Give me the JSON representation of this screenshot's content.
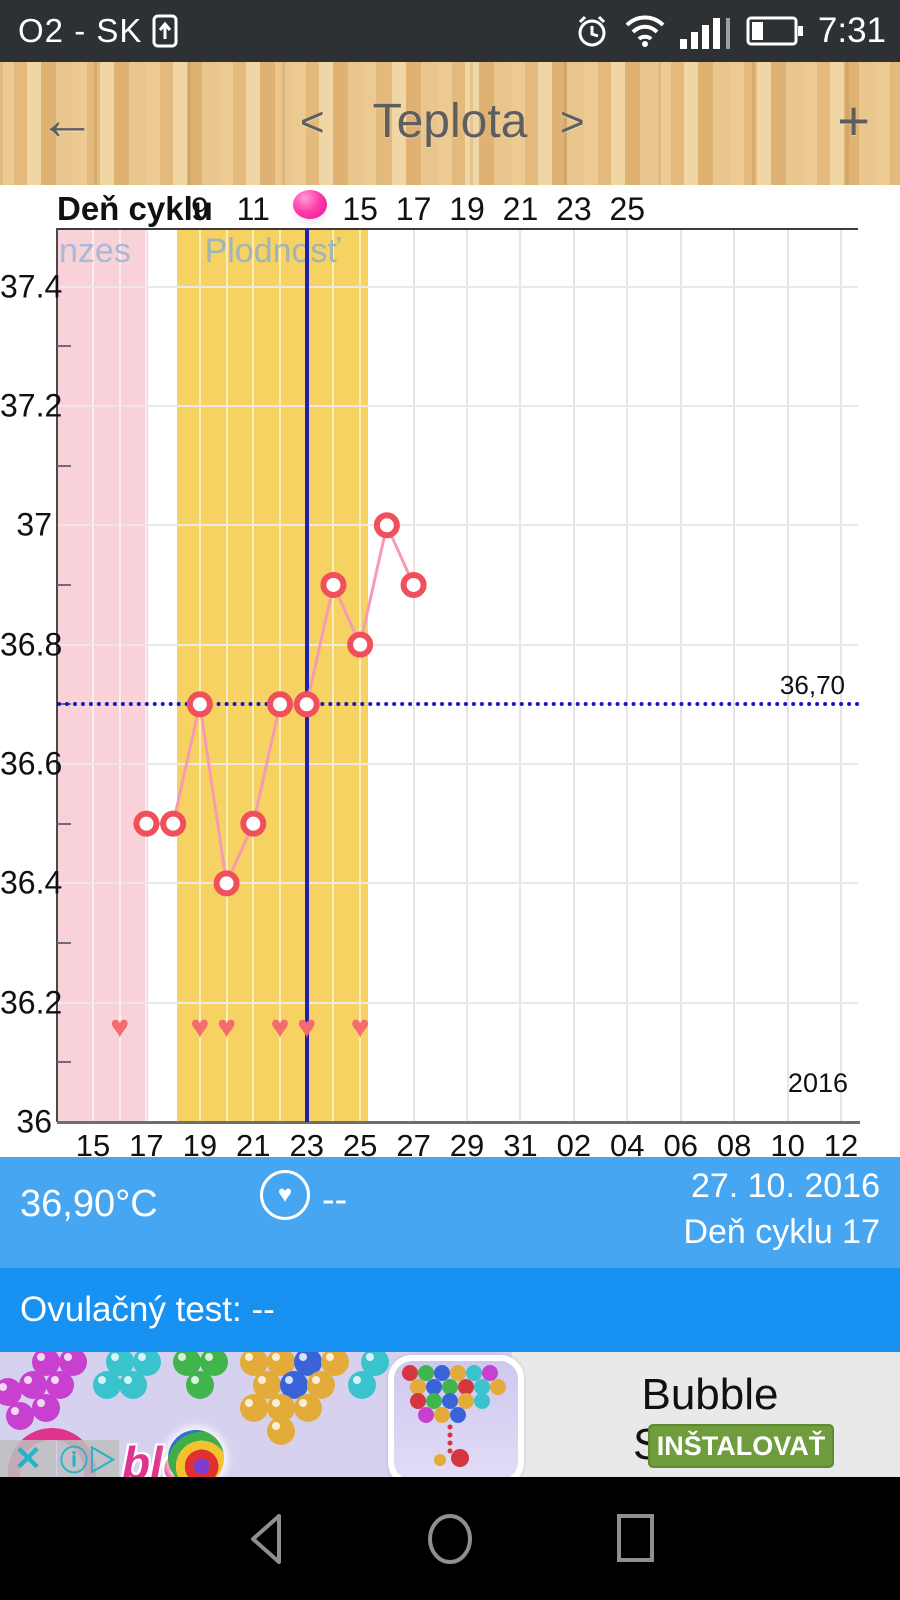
{
  "status_bar": {
    "carrier": "O2 - SK",
    "time": "7:31",
    "icons": [
      "upload-icon",
      "alarm-icon",
      "wifi-icon",
      "signal-icon",
      "battery-icon"
    ]
  },
  "header": {
    "back": "←",
    "nav_prev": "<",
    "title": "Teplota",
    "nav_next": ">",
    "add": "+"
  },
  "cycle_row": {
    "label": "Deň cyklu",
    "entries": [
      {
        "text": "9",
        "day_offset": 4
      },
      {
        "text": "11",
        "day_offset": 6
      },
      {
        "text": "15",
        "day_offset": 10
      },
      {
        "text": "17",
        "day_offset": 12
      },
      {
        "text": "19",
        "day_offset": 14
      },
      {
        "text": "21",
        "day_offset": 16
      },
      {
        "text": "23",
        "day_offset": 18
      },
      {
        "text": "25",
        "day_offset": 20
      }
    ],
    "ovulation_marker_day_offset": 8,
    "ovulation_marker_color": "#f10d8e"
  },
  "chart_data": {
    "type": "line",
    "title": "Teplota (basal body temperature chart)",
    "x_axis": {
      "tick_labels": [
        "15",
        "17",
        "19",
        "21",
        "23",
        "25",
        "27",
        "29",
        "31",
        "02",
        "04",
        "06",
        "08",
        "10",
        "12"
      ],
      "tick_day_offsets": [
        0,
        2,
        4,
        6,
        8,
        10,
        12,
        14,
        16,
        18,
        20,
        22,
        24,
        26,
        28
      ],
      "year_label": "2016"
    },
    "y_axis": {
      "tick_values": [
        36,
        36.2,
        36.4,
        36.6,
        36.8,
        37,
        37.2,
        37.4
      ],
      "tick_labels": [
        "36",
        "36.2",
        "36.4",
        "36.6",
        "36.8",
        "37",
        "37.2",
        "37.4"
      ],
      "minor_tick_values": [
        36.1,
        36.3,
        36.5,
        36.7,
        36.9,
        37.1,
        37.3
      ],
      "range": [
        35.95,
        37.5
      ]
    },
    "series": [
      {
        "name": "temperature-celsius",
        "points": [
          {
            "day_offset": 2,
            "value": 36.5
          },
          {
            "day_offset": 3,
            "value": 36.5
          },
          {
            "day_offset": 4,
            "value": 36.7
          },
          {
            "day_offset": 5,
            "value": 36.4
          },
          {
            "day_offset": 6,
            "value": 36.5
          },
          {
            "day_offset": 7,
            "value": 36.7
          },
          {
            "day_offset": 8,
            "value": 36.7
          },
          {
            "day_offset": 9,
            "value": 36.9
          },
          {
            "day_offset": 10,
            "value": 36.8
          },
          {
            "day_offset": 11,
            "value": 37.0
          },
          {
            "day_offset": 12,
            "value": 36.9
          }
        ]
      }
    ],
    "intercourse_hearts": {
      "day_offsets": [
        1,
        4,
        5,
        7,
        8,
        10
      ],
      "value_level": 36.16
    },
    "coverline": {
      "value": 36.7,
      "label": "36,70"
    },
    "selected_day_line": {
      "day_offset": 8
    },
    "bands": [
      {
        "name": "menses",
        "label": "nzes",
        "from_day": null,
        "to_day": 2.06,
        "color": "#f9d1d8",
        "label_color": "#a9b9d9"
      },
      {
        "name": "fertility",
        "label": "Plodnosť",
        "from_day": 3.14,
        "to_day": 10.29,
        "color": "#f5d262",
        "label_color": "#9fb4bb"
      }
    ],
    "colors": {
      "line": "#f79cb0",
      "point_fill": "#ffffff",
      "point_border": "#f04f5c",
      "heart": "#f56c6c",
      "coverline": "#1414d2",
      "selected_day_line": "#2121af"
    },
    "grid": true,
    "legend": false
  },
  "info_bar": {
    "temperature": "36,90°C",
    "intercourse_icon": "heart-circle-icon",
    "intercourse_value": "--",
    "date": "27. 10. 2016",
    "cycle_day": "Deň cyklu 17"
  },
  "ovulation_bar": {
    "text": "Ovulačný test: --"
  },
  "ad": {
    "title": "Bubble Shooter",
    "install_button": "INŠTALOVAŤ",
    "logo_fragment": "ble",
    "close_glyph": "✕",
    "adchoices_glyph": "ⓘ▷",
    "button_color": "#6f9d3d"
  },
  "nav_bar": {
    "icons": [
      "back-icon",
      "home-icon",
      "recents-icon"
    ]
  }
}
